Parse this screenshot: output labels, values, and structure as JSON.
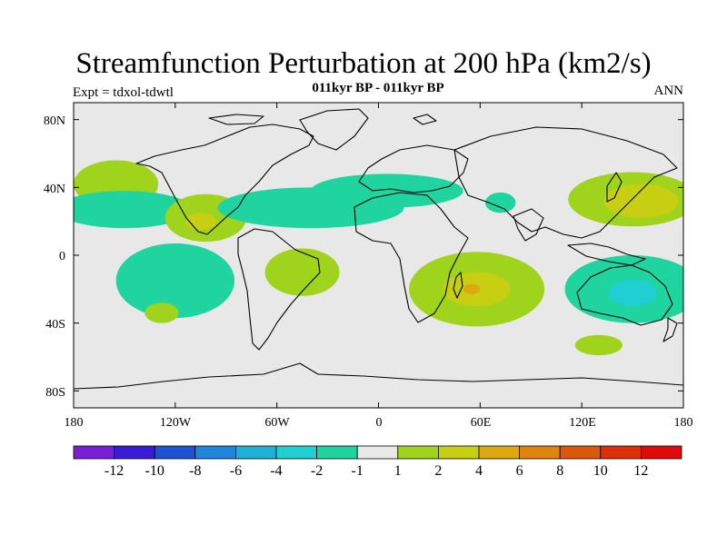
{
  "title": "Streamfunction Perturbation at 200 hPa (km2/s)",
  "subtitle": "011kyr BP - 011kyr BP",
  "experiment": "Expt = tdxol-tdwtl",
  "season": "ANN",
  "projection": "cylindrical-equidistant",
  "lon_range": [
    -180,
    180
  ],
  "lat_range": [
    -90,
    90
  ],
  "lon_tick_labels": [
    "180",
    "120W",
    "60W",
    "0",
    "60E",
    "120E",
    "180"
  ],
  "lat_tick_labels": [
    "80N",
    "40N",
    "0",
    "40S",
    "80S"
  ],
  "colors": {
    "background": "#e8e8e8",
    "coast": "#000000"
  },
  "colorbar": {
    "labels": [
      "-12",
      "-10",
      "-8",
      "-6",
      "-4",
      "-2",
      "-1",
      "1",
      "2",
      "4",
      "6",
      "8",
      "10",
      "12"
    ],
    "colors": [
      "#7a1fd8",
      "#3a1bd6",
      "#1f52d3",
      "#1f86d9",
      "#1fb0d8",
      "#1fcfd2",
      "#1fd49e",
      "#e8e8e8",
      "#9fd31c",
      "#c8cf12",
      "#dcaa10",
      "#e0840e",
      "#de580c",
      "#dd300a",
      "#e10a0a"
    ]
  },
  "contour_regions": [
    {
      "name": "north-pacific-east",
      "value_class": 1,
      "lon": -155,
      "lat": 42,
      "rx": 25,
      "ry": 14
    },
    {
      "name": "pacific-subtropical-band",
      "value_class": -1,
      "lon": -150,
      "lat": 27,
      "rx": 40,
      "ry": 11
    },
    {
      "name": "mexico-gulf",
      "value_class": 1,
      "lon": -102,
      "lat": 22,
      "rx": 24,
      "ry": 14
    },
    {
      "name": "mexico-core",
      "value_class": 2,
      "lon": -105,
      "lat": 20,
      "rx": 9,
      "ry": 5
    },
    {
      "name": "north-atlantic-band",
      "value_class": -1,
      "lon": -40,
      "lat": 28,
      "rx": 55,
      "ry": 12
    },
    {
      "name": "mediterranean-band",
      "value_class": -1,
      "lon": 5,
      "lat": 38,
      "rx": 45,
      "ry": 10
    },
    {
      "name": "central-asia",
      "value_class": -1,
      "lon": 72,
      "lat": 31,
      "rx": 9,
      "ry": 6
    },
    {
      "name": "south-atlantic",
      "value_class": 1,
      "lon": -45,
      "lat": -10,
      "rx": 22,
      "ry": 14
    },
    {
      "name": "east-pacific-south",
      "value_class": -1,
      "lon": -120,
      "lat": -15,
      "rx": 35,
      "ry": 22
    },
    {
      "name": "south-pacific-small",
      "value_class": 1,
      "lon": -128,
      "lat": -34,
      "rx": 10,
      "ry": 6
    },
    {
      "name": "indian-ocean",
      "value_class": 1,
      "lon": 58,
      "lat": -20,
      "rx": 40,
      "ry": 22
    },
    {
      "name": "indian-ocean-core",
      "value_class": 2,
      "lon": 58,
      "lat": -20,
      "rx": 20,
      "ry": 10
    },
    {
      "name": "madagascar-core",
      "value_class": 3,
      "lon": 55,
      "lat": -20,
      "rx": 5,
      "ry": 3
    },
    {
      "name": "west-pacific-north",
      "value_class": 1,
      "lon": 150,
      "lat": 33,
      "rx": 38,
      "ry": 16
    },
    {
      "name": "west-pacific-core",
      "value_class": 2,
      "lon": 155,
      "lat": 32,
      "rx": 22,
      "ry": 10
    },
    {
      "name": "australia",
      "value_class": -1,
      "lon": 150,
      "lat": -20,
      "rx": 40,
      "ry": 20
    },
    {
      "name": "australia-core",
      "value_class": -2,
      "lon": 150,
      "lat": -22,
      "rx": 14,
      "ry": 8
    },
    {
      "name": "southern-ocean-small",
      "value_class": 1,
      "lon": 130,
      "lat": -53,
      "rx": 14,
      "ry": 6
    }
  ]
}
